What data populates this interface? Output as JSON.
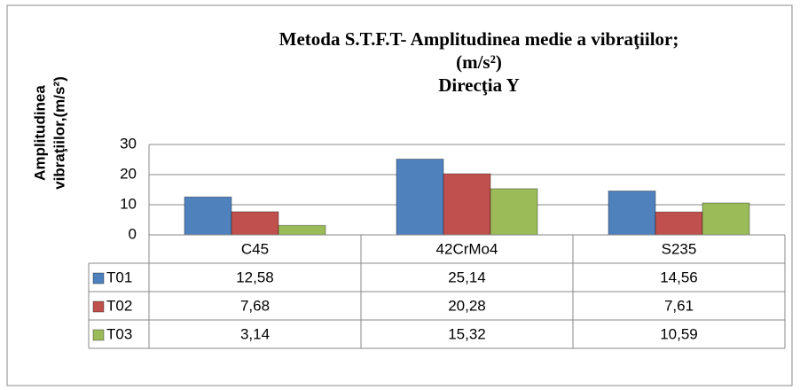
{
  "chart_data": {
    "type": "bar",
    "title": [
      "Metoda S.T.F.T- Amplitudinea medie a vibraţiilor;",
      "(m/s²)",
      "Direcţia Y"
    ],
    "ylabel": [
      "Amplitudinea",
      "vibraţiilor,(m/s²)"
    ],
    "categories": [
      "C45",
      "42CrMo4",
      "S235"
    ],
    "series": [
      {
        "name": "T01",
        "color": "#4f81bd",
        "values": [
          12.58,
          25.14,
          14.56
        ],
        "value_labels": [
          "12,58",
          "25,14",
          "14,56"
        ]
      },
      {
        "name": "T02",
        "color": "#c0504d",
        "values": [
          7.68,
          20.28,
          7.61
        ],
        "value_labels": [
          "7,68",
          "20,28",
          "7,61"
        ]
      },
      {
        "name": "T03",
        "color": "#9bbb59",
        "values": [
          3.14,
          15.32,
          10.59
        ],
        "value_labels": [
          "3,14",
          "15,32",
          "10,59"
        ]
      }
    ],
    "ylim": [
      0,
      30
    ],
    "yticks": [
      0,
      10,
      20,
      30
    ],
    "grid": true,
    "data_table": true
  }
}
